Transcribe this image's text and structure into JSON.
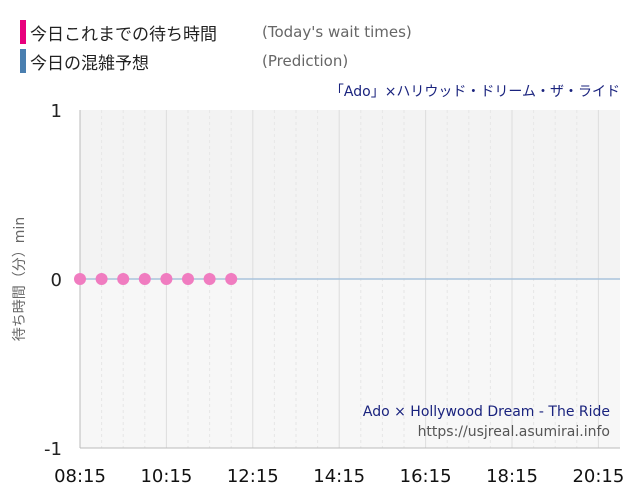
{
  "legend": [
    {
      "label": "今日これまでの待ち時間",
      "sub": "(Today's wait times)",
      "color": "#e8007d"
    },
    {
      "label": "今日の混雑予想",
      "sub": "(Prediction)",
      "color": "#4a7fb0"
    }
  ],
  "colors": {
    "actual_point": "#f07cc0",
    "prediction_line": "#a9c3dc",
    "plot_bg_upper": "#f3f3f3",
    "plot_bg_lower": "#f7f7f7",
    "title_text": "#1a237e"
  },
  "chart_data": {
    "type": "scatter",
    "title": "「Ado」×ハリウッド・ドリーム・ザ・ライド",
    "ylabel": "待ち時間（分）min",
    "ylim": [
      -1,
      1
    ],
    "xlim": [
      "08:15",
      "20:45"
    ],
    "y_ticks": [
      "1",
      "0",
      "-1"
    ],
    "x_ticks": [
      "08:15",
      "10:15",
      "12:15",
      "14:15",
      "16:15",
      "18:15",
      "20:15"
    ],
    "grid": true,
    "series": [
      {
        "name": "今日これまでの待ち時間",
        "x": [
          "08:15",
          "08:45",
          "09:15",
          "09:45",
          "10:15",
          "10:45",
          "11:15",
          "11:45"
        ],
        "y": [
          0,
          0,
          0,
          0,
          0,
          0,
          0,
          0
        ]
      },
      {
        "name": "今日の混雑予想",
        "x": [
          "08:15",
          "20:45"
        ],
        "y": [
          0,
          0
        ]
      }
    ],
    "watermark": {
      "title": "Ado × Hollywood Dream - The Ride",
      "url": "https://usjreal.asumirai.info"
    }
  }
}
